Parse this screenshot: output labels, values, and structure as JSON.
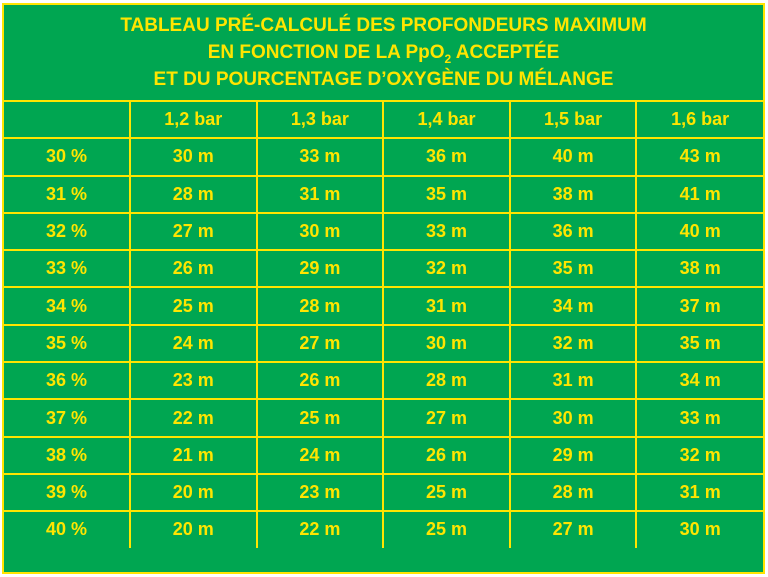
{
  "title": {
    "line1": "TABLEAU PRÉ-CALCULÉ DES PROFONDEURS MAXIMUM",
    "line2_pre": "EN FONCTION DE LA PpO",
    "line2_sub": "2",
    "line2_post": " ACCEPTÉE",
    "line3": "ET DU POURCENTAGE D’OXYGÈNE DU MÉLANGE"
  },
  "colors": {
    "background": "#00a651",
    "text_and_lines": "#ffe500"
  },
  "table": {
    "corner": "",
    "columns": [
      "1,2 bar",
      "1,3 bar",
      "1,4 bar",
      "1,5 bar",
      "1,6 bar"
    ],
    "rows": [
      {
        "label": "30 %",
        "values": [
          "30 m",
          "33 m",
          "36 m",
          "40 m",
          "43 m"
        ]
      },
      {
        "label": "31 %",
        "values": [
          "28 m",
          "31 m",
          "35 m",
          "38 m",
          "41 m"
        ]
      },
      {
        "label": "32 %",
        "values": [
          "27 m",
          "30 m",
          "33 m",
          "36 m",
          "40 m"
        ]
      },
      {
        "label": "33 %",
        "values": [
          "26 m",
          "29 m",
          "32 m",
          "35 m",
          "38 m"
        ]
      },
      {
        "label": "34 %",
        "values": [
          "25 m",
          "28 m",
          "31 m",
          "34 m",
          "37 m"
        ]
      },
      {
        "label": "35 %",
        "values": [
          "24 m",
          "27 m",
          "30 m",
          "32 m",
          "35 m"
        ]
      },
      {
        "label": "36 %",
        "values": [
          "23 m",
          "26 m",
          "28 m",
          "31 m",
          "34 m"
        ]
      },
      {
        "label": "37 %",
        "values": [
          "22 m",
          "25 m",
          "27 m",
          "30 m",
          "33 m"
        ]
      },
      {
        "label": "38 %",
        "values": [
          "21 m",
          "24 m",
          "26 m",
          "29 m",
          "32 m"
        ]
      },
      {
        "label": "39 %",
        "values": [
          "20 m",
          "23 m",
          "25 m",
          "28 m",
          "31 m"
        ]
      },
      {
        "label": "40 %",
        "values": [
          "20 m",
          "22 m",
          "25 m",
          "27 m",
          "30 m"
        ]
      }
    ]
  }
}
